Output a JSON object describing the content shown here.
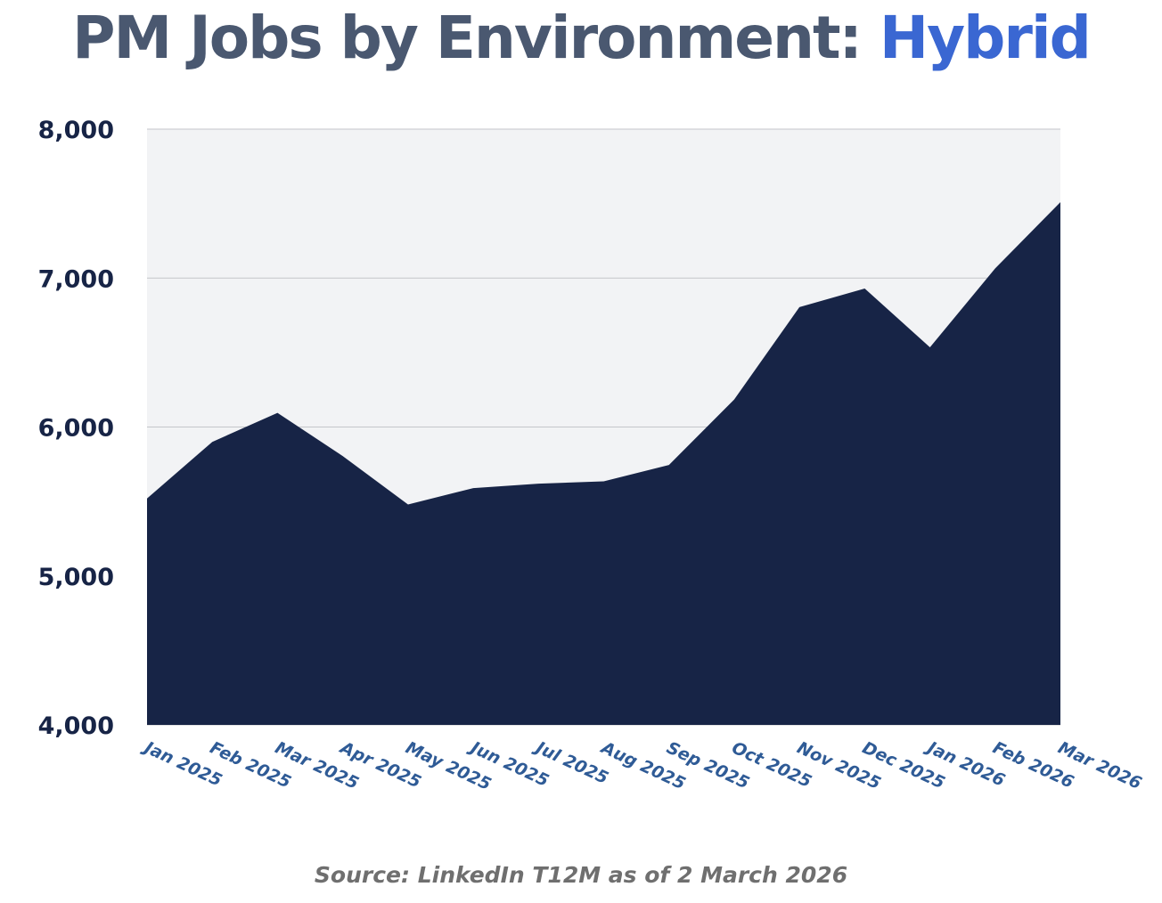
{
  "title": {
    "main": "PM Jobs by Environment: ",
    "highlight": "Hybrid"
  },
  "colors": {
    "title": "#4a5870",
    "highlight": "#3a67d2",
    "area": "#172446",
    "plot_bg": "#f2f3f5",
    "grid": "#c4c6ca",
    "y_tick": "#172446",
    "x_tick": "#2f5b96",
    "source": "#6f6f6f"
  },
  "chart_data": {
    "type": "area",
    "title": "PM Jobs by Environment: Hybrid",
    "xlabel": "",
    "ylabel": "",
    "ylim": [
      4000,
      8000
    ],
    "y_ticks": [
      {
        "value": 4000,
        "label": "4,000"
      },
      {
        "value": 5000,
        "label": "5,000"
      },
      {
        "value": 6000,
        "label": "6,000"
      },
      {
        "value": 7000,
        "label": "7,000"
      },
      {
        "value": 8000,
        "label": "8,000"
      }
    ],
    "grid": true,
    "categories": [
      "Jan 2025",
      "Feb 2025",
      "Mar 2025",
      "Apr 2025",
      "May 2025",
      "Jun 2025",
      "Jul 2025",
      "Aug 2025",
      "Sep 2025",
      "Oct 2025",
      "Nov 2025",
      "Dec 2025",
      "Jan 2026",
      "Feb 2026",
      "Mar 2026"
    ],
    "values": [
      5520,
      5900,
      6095,
      5805,
      5480,
      5590,
      5620,
      5635,
      5745,
      6185,
      6805,
      6930,
      6535,
      7065,
      7510
    ]
  },
  "source": "Source: LinkedIn T12M as of 2 March 2026"
}
